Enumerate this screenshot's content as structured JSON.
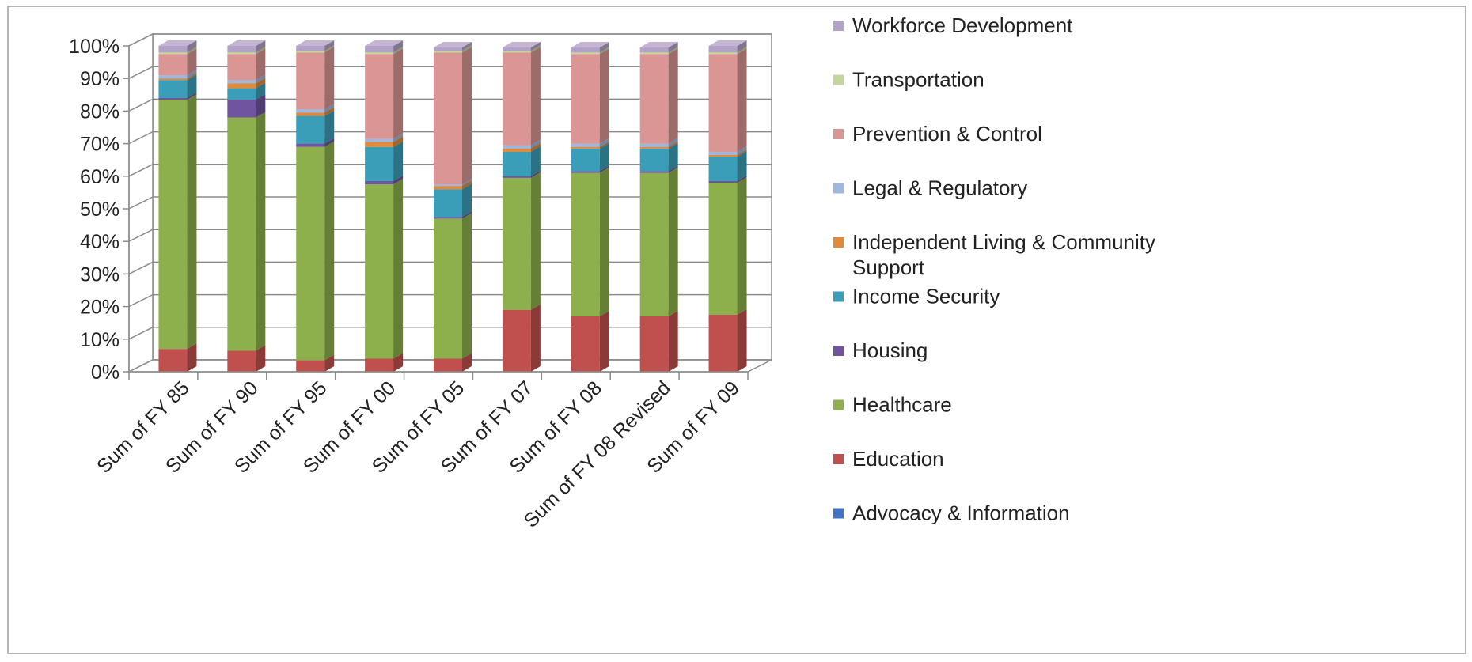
{
  "chart_data": {
    "type": "bar",
    "stacked": true,
    "three_d": true,
    "categories": [
      "Sum of FY 85",
      "Sum of FY 90",
      "Sum of FY 95",
      "Sum of FY 00",
      "Sum of FY 05",
      "Sum of FY 07",
      "Sum of FY 08",
      "Sum of FY 08 Revised",
      "Sum of FY 09"
    ],
    "y_ticks": [
      "0%",
      "10%",
      "20%",
      "30%",
      "40%",
      "50%",
      "60%",
      "70%",
      "80%",
      "90%",
      "100%"
    ],
    "ylim": [
      0,
      100
    ],
    "grid": true,
    "legend_position": "right",
    "series": [
      {
        "name": "Advocacy & Information",
        "color": "#4472C4",
        "values": [
          0,
          0,
          0,
          0,
          0,
          0,
          0,
          0,
          0
        ]
      },
      {
        "name": "Education",
        "color": "#C0504D",
        "values": [
          7,
          6.5,
          3.5,
          4,
          4,
          19,
          17,
          17,
          17.5
        ]
      },
      {
        "name": "Healthcare",
        "color": "#8DB04C",
        "values": [
          76.5,
          71.5,
          65.5,
          53.5,
          43,
          40.5,
          44,
          44,
          40.5
        ]
      },
      {
        "name": "Housing",
        "color": "#7154A0",
        "values": [
          0.5,
          5.5,
          1,
          1,
          0.5,
          0.5,
          0.5,
          0.5,
          0.5
        ]
      },
      {
        "name": "Income Security",
        "color": "#3A9EB8",
        "values": [
          5.5,
          3.5,
          8.5,
          10.5,
          8.5,
          7.5,
          7,
          7,
          7.5
        ]
      },
      {
        "name": "Independent Living & Community Support",
        "color": "#E2893A",
        "values": [
          0.5,
          1.5,
          1,
          1.5,
          1,
          1,
          0.5,
          0.5,
          0.5
        ]
      },
      {
        "name": "Legal & Regulatory",
        "color": "#A0B7DE",
        "values": [
          1,
          1,
          1,
          1,
          0.5,
          1,
          1,
          1,
          1
        ]
      },
      {
        "name": "Prevention & Control",
        "color": "#D99694",
        "values": [
          6.5,
          8,
          17.5,
          26,
          40.5,
          28.5,
          27.5,
          27.5,
          30
        ]
      },
      {
        "name": "Transportation",
        "color": "#C3D69B",
        "values": [
          0.5,
          0.5,
          0.5,
          0.5,
          0.5,
          0.5,
          0.5,
          0.5,
          0.5
        ]
      },
      {
        "name": "Workforce Development",
        "color": "#B3A2C7",
        "values": [
          2,
          2,
          1.5,
          2,
          1,
          1,
          1.5,
          1.5,
          2
        ]
      }
    ]
  }
}
